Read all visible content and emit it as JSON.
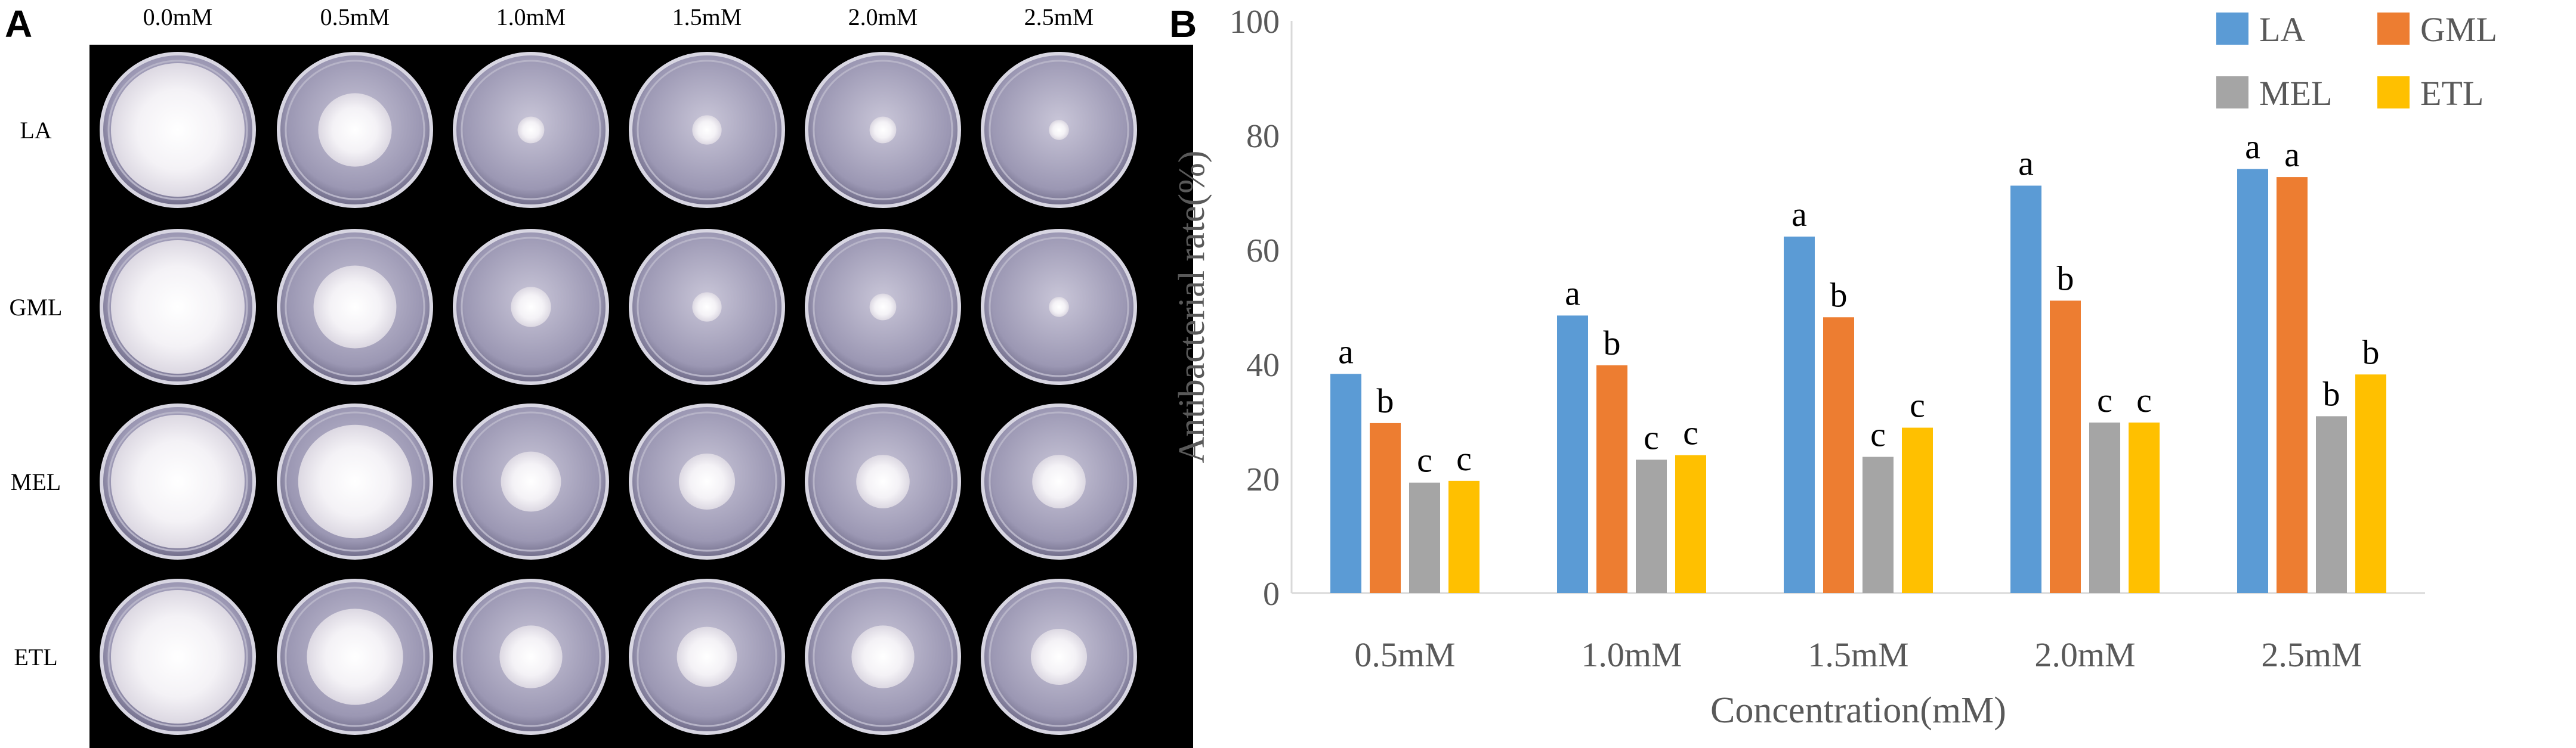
{
  "panel_a": {
    "letter": "A",
    "columns": [
      "0.0mM",
      "0.5mM",
      "1.0mM",
      "1.5mM",
      "2.0mM",
      "2.5mM"
    ],
    "rows": [
      "LA",
      "GML",
      "MEL",
      "ETL"
    ],
    "colony_levels": [
      [
        1.0,
        0.55,
        0.2,
        0.22,
        0.2,
        0.15
      ],
      [
        1.0,
        0.62,
        0.3,
        0.22,
        0.2,
        0.15
      ],
      [
        1.0,
        0.85,
        0.45,
        0.42,
        0.4,
        0.4
      ],
      [
        1.0,
        0.72,
        0.47,
        0.45,
        0.47,
        0.42
      ]
    ]
  },
  "panel_b": {
    "letter": "B"
  },
  "chart_data": {
    "type": "bar",
    "categories": [
      "0.5mM",
      "1.0mM",
      "1.5mM",
      "2.0mM",
      "2.5mM"
    ],
    "series": [
      {
        "name": "LA",
        "values": [
          38.3,
          48.5,
          62.3,
          71.2,
          74.1
        ],
        "labels": [
          "a",
          "a",
          "a",
          "a",
          "a"
        ]
      },
      {
        "name": "GML",
        "values": [
          29.7,
          39.8,
          48.2,
          51.1,
          72.7
        ],
        "labels": [
          "b",
          "b",
          "b",
          "b",
          "a"
        ]
      },
      {
        "name": "MEL",
        "values": [
          19.3,
          23.3,
          23.8,
          29.8,
          30.9
        ],
        "labels": [
          "c",
          "c",
          "c",
          "c",
          "b"
        ]
      },
      {
        "name": "ETL",
        "values": [
          19.6,
          24.1,
          28.9,
          29.8,
          38.2
        ],
        "labels": [
          "c",
          "c",
          "c",
          "c",
          "b"
        ]
      }
    ],
    "colors": [
      "#5B9BD5",
      "#ED7D31",
      "#A5A5A5",
      "#FFC000"
    ],
    "xlabel": "Concentration(mM)",
    "ylabel": "Antibacterial rate(%)",
    "ylim": [
      0,
      100
    ],
    "yticks": [
      0,
      20,
      40,
      60,
      80,
      100
    ],
    "grid": false,
    "legend_position": "top-right"
  }
}
